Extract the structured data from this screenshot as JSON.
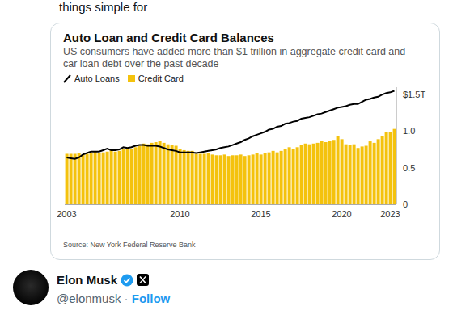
{
  "post": {
    "text": "things simple for",
    "author": {
      "name": "Elon Musk",
      "handle": "@elonmusk",
      "separator": "·",
      "action": "Follow"
    }
  },
  "chart_data": {
    "type": "bar",
    "title": "Auto Loan and Credit Card Balances",
    "subtitle": "US consumers have added more than $1 trillion in aggregate credit card and car loan debt over the past decade",
    "source": "Source: New York Federal Reserve Bank",
    "categories": [
      "2003",
      null,
      null,
      null,
      null,
      null,
      null,
      null,
      null,
      null,
      null,
      null,
      null,
      null,
      null,
      null,
      null,
      null,
      null,
      null,
      null,
      null,
      null,
      null,
      null,
      null,
      null,
      null,
      "2010",
      null,
      null,
      null,
      null,
      null,
      null,
      null,
      null,
      null,
      null,
      null,
      null,
      null,
      null,
      null,
      null,
      null,
      null,
      null,
      "2015",
      null,
      null,
      null,
      null,
      null,
      null,
      null,
      null,
      null,
      null,
      null,
      null,
      null,
      null,
      null,
      null,
      null,
      null,
      null,
      "2020",
      null,
      null,
      null,
      null,
      null,
      null,
      null,
      null,
      null,
      null,
      null,
      "2023",
      null
    ],
    "series": [
      {
        "name": "Auto Loans",
        "type": "line",
        "color": "#000000",
        "values": [
          0.64,
          0.63,
          0.62,
          0.64,
          0.68,
          0.7,
          0.72,
          0.72,
          0.72,
          0.74,
          0.76,
          0.74,
          0.74,
          0.75,
          0.78,
          0.77,
          0.78,
          0.8,
          0.81,
          0.81,
          0.8,
          0.8,
          0.8,
          0.79,
          0.77,
          0.75,
          0.74,
          0.73,
          0.71,
          0.71,
          0.71,
          0.71,
          0.7,
          0.71,
          0.72,
          0.73,
          0.74,
          0.75,
          0.77,
          0.78,
          0.79,
          0.81,
          0.83,
          0.85,
          0.88,
          0.9,
          0.93,
          0.95,
          0.97,
          0.99,
          1.02,
          1.03,
          1.06,
          1.07,
          1.1,
          1.11,
          1.13,
          1.14,
          1.17,
          1.18,
          1.19,
          1.21,
          1.23,
          1.24,
          1.26,
          1.28,
          1.3,
          1.32,
          1.33,
          1.34,
          1.36,
          1.37,
          1.37,
          1.4,
          1.43,
          1.44,
          1.46,
          1.47,
          1.5,
          1.52,
          1.53,
          1.55
        ]
      },
      {
        "name": "Credit Card",
        "type": "bar",
        "color": "#f4c20d",
        "values": [
          0.69,
          0.69,
          0.69,
          0.7,
          0.68,
          0.69,
          0.7,
          0.72,
          0.7,
          0.71,
          0.72,
          0.74,
          0.72,
          0.73,
          0.75,
          0.77,
          0.76,
          0.78,
          0.8,
          0.83,
          0.82,
          0.84,
          0.85,
          0.87,
          0.84,
          0.82,
          0.81,
          0.8,
          0.76,
          0.74,
          0.73,
          0.73,
          0.69,
          0.69,
          0.69,
          0.7,
          0.68,
          0.67,
          0.67,
          0.68,
          0.66,
          0.67,
          0.67,
          0.68,
          0.66,
          0.67,
          0.68,
          0.7,
          0.68,
          0.7,
          0.71,
          0.73,
          0.71,
          0.73,
          0.75,
          0.78,
          0.76,
          0.78,
          0.81,
          0.83,
          0.82,
          0.83,
          0.84,
          0.87,
          0.85,
          0.87,
          0.88,
          0.93,
          0.89,
          0.82,
          0.81,
          0.82,
          0.77,
          0.79,
          0.8,
          0.86,
          0.84,
          0.89,
          0.93,
          0.99,
          0.99,
          1.03
        ]
      }
    ],
    "ylim": [
      0,
      1.6
    ],
    "yticks": [
      0,
      0.5,
      {
        "value": 1,
        "label": "1.0"
      },
      {
        "value": 1.5,
        "label": "$1.5T"
      }
    ]
  }
}
